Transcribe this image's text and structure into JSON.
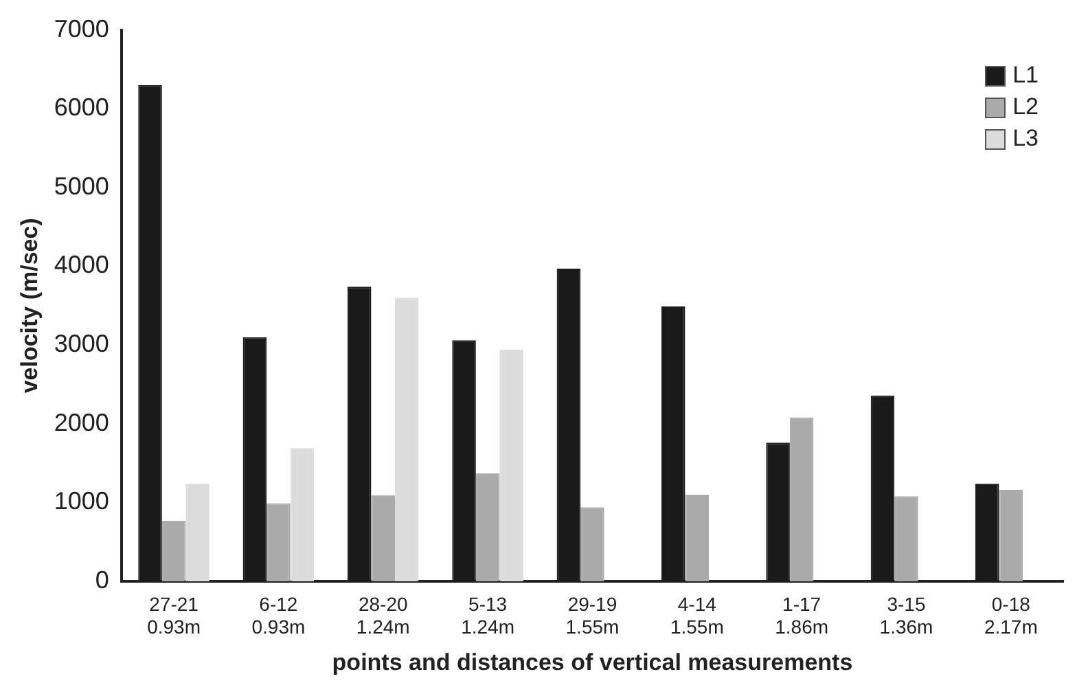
{
  "chart_data": {
    "type": "bar",
    "xlabel": "points and distances of vertical measurements",
    "ylabel": "velocity (m/sec)",
    "categories": [
      "27-21\n0.93m",
      "6-12\n0.93m",
      "28-20\n1.24m",
      "5-13\n1.24m",
      "29-19\n1.55m",
      "4-14\n1.55m",
      "1-17\n1.86m",
      "3-15\n1.36m",
      "0-18\n2.17m"
    ],
    "series": [
      {
        "name": "L1",
        "color": "#1a1a1a",
        "values": [
          6300,
          3100,
          3740,
          3060,
          3970,
          3490,
          1760,
          2360,
          1240
        ]
      },
      {
        "name": "L2",
        "color": "#aaaaaa",
        "values": [
          770,
          990,
          1090,
          1370,
          940,
          1100,
          2080,
          1080,
          1160
        ]
      },
      {
        "name": "L3",
        "color": "#dcdcdc",
        "values": [
          1240,
          1690,
          3600,
          2940,
          null,
          null,
          null,
          null,
          null
        ]
      }
    ],
    "ylim": [
      0,
      7000
    ],
    "yticks": [
      0,
      1000,
      2000,
      3000,
      4000,
      5000,
      6000,
      7000
    ],
    "grid": false,
    "legend": "top right"
  }
}
